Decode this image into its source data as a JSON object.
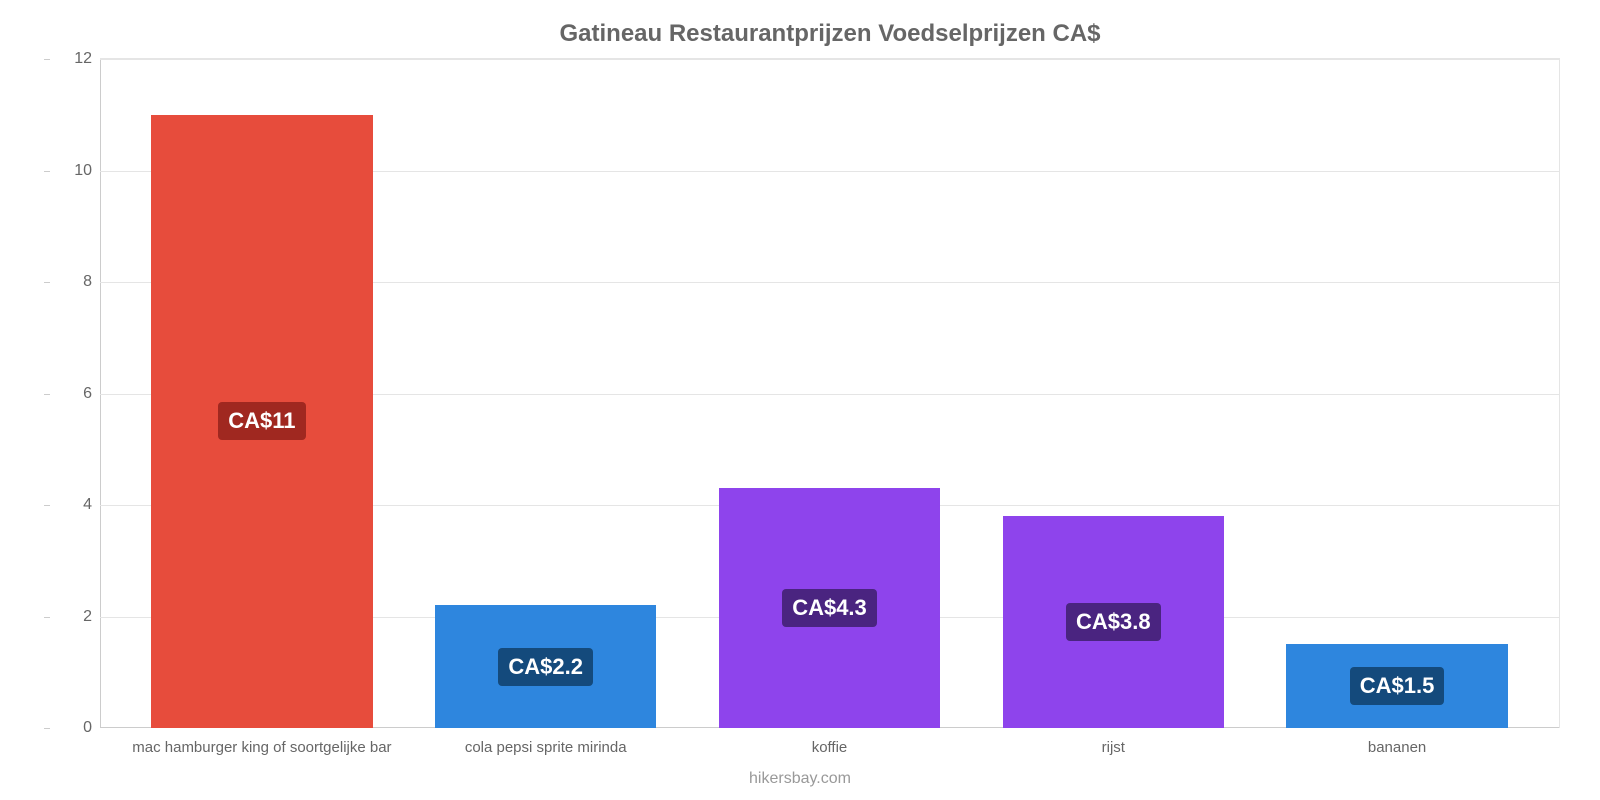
{
  "chart": {
    "type": "bar",
    "title": "Gatineau Restaurantprijzen Voedselprijzen CA$",
    "title_color": "#666666",
    "title_fontsize": 24,
    "background_color": "#ffffff",
    "grid_color": "#e5e5e5",
    "axis_color": "#cccccc",
    "ylim": [
      0,
      12
    ],
    "ytick_step": 2,
    "yticks": [
      0,
      2,
      4,
      6,
      8,
      10,
      12
    ],
    "label_fontsize": 16,
    "tick_color": "#666666",
    "bar_width": 0.78,
    "categories": [
      "mac hamburger king of soortgelijke bar",
      "cola pepsi sprite mirinda",
      "koffie",
      "rijst",
      "bananen"
    ],
    "values": [
      11,
      2.2,
      4.3,
      3.8,
      1.5
    ],
    "value_labels": [
      "CA$11",
      "CA$2.2",
      "CA$4.3",
      "CA$3.8",
      "CA$1.5"
    ],
    "bar_colors": [
      "#e74c3c",
      "#2e86de",
      "#8e44ec",
      "#8e44ec",
      "#2e86de"
    ],
    "label_bg_colors": [
      "#a02820",
      "#144a7c",
      "#4a2480",
      "#4a2480",
      "#144a7c"
    ],
    "value_label_fontsize": 22,
    "value_label_color": "#ffffff",
    "xlabel_fontsize": 15,
    "xlabel_color": "#666666"
  },
  "attribution": "hikersbay.com",
  "attribution_color": "#999999",
  "attribution_fontsize": 16
}
